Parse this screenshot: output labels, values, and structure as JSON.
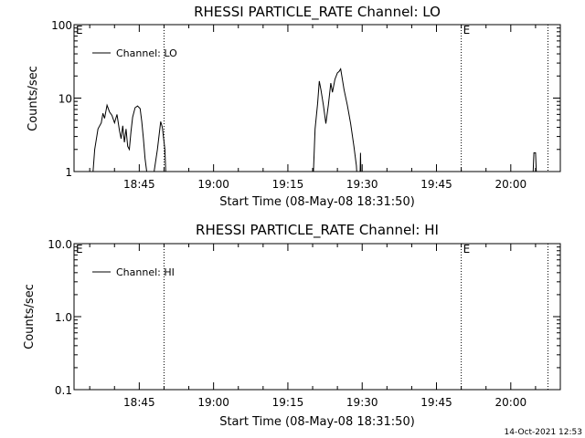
{
  "chart_data": [
    {
      "type": "line",
      "title": "RHESSI PARTICLE_RATE Channel: LO",
      "ylabel": "Counts/sec",
      "xlabel": "Start Time (08-May-08 18:31:50)",
      "yscale": "log",
      "ylim": [
        1,
        100
      ],
      "ytick_labels": [
        "1",
        "10",
        "100"
      ],
      "xlim": [
        "18:31:50",
        "20:10:00"
      ],
      "xtick_labels": [
        "18:45",
        "19:00",
        "19:15",
        "19:30",
        "19:45",
        "20:00"
      ],
      "legend": "Channel: LO",
      "legend_position": "top-left",
      "markers": [
        {
          "label": "E",
          "time": "18:31:50"
        },
        {
          "label": "",
          "time": "18:50:00"
        },
        {
          "label": "E",
          "time": "19:50:00"
        },
        {
          "label": "",
          "time": "20:07:30"
        }
      ],
      "series": [
        {
          "name": "Channel: LO",
          "points": [
            [
              "18:35:20",
              0.5
            ],
            [
              "18:36:00",
              2.0
            ],
            [
              "18:36:40",
              3.8
            ],
            [
              "18:37:20",
              4.6
            ],
            [
              "18:37:40",
              6.2
            ],
            [
              "18:38:00",
              5.3
            ],
            [
              "18:38:30",
              8.0
            ],
            [
              "18:39:00",
              6.5
            ],
            [
              "18:39:30",
              5.8
            ],
            [
              "18:40:00",
              4.6
            ],
            [
              "18:40:30",
              6.0
            ],
            [
              "18:41:00",
              3.6
            ],
            [
              "18:41:20",
              2.8
            ],
            [
              "18:41:40",
              4.2
            ],
            [
              "18:42:00",
              2.5
            ],
            [
              "18:42:20",
              3.8
            ],
            [
              "18:42:40",
              2.2
            ],
            [
              "18:43:00",
              2.0
            ],
            [
              "18:43:20",
              3.5
            ],
            [
              "18:43:40",
              5.5
            ],
            [
              "18:44:10",
              7.4
            ],
            [
              "18:44:40",
              7.8
            ],
            [
              "18:45:10",
              7.2
            ],
            [
              "18:45:30",
              4.8
            ],
            [
              "18:45:50",
              2.8
            ],
            [
              "18:46:10",
              1.5
            ],
            [
              "18:46:30",
              1.0
            ],
            [
              "18:47:20",
              0.5
            ],
            [
              "18:48:40",
              2.0
            ],
            [
              "18:49:20",
              4.8
            ],
            [
              "18:49:40",
              4.0
            ],
            [
              "18:50:10",
              2.0
            ],
            [
              "18:50:30",
              0.5
            ],
            [
              "19:20:00",
              0.5
            ],
            [
              "19:20:30",
              3.8
            ],
            [
              "19:21:00",
              8.5
            ],
            [
              "19:21:20",
              17.0
            ],
            [
              "19:21:40",
              13.0
            ],
            [
              "19:22:10",
              8.0
            ],
            [
              "19:22:40",
              4.5
            ],
            [
              "19:23:10",
              8.0
            ],
            [
              "19:23:40",
              16.0
            ],
            [
              "19:24:00",
              12.0
            ],
            [
              "19:24:30",
              18.0
            ],
            [
              "19:25:00",
              22.0
            ],
            [
              "19:25:20",
              23.0
            ],
            [
              "19:25:40",
              25.0
            ],
            [
              "19:26:20",
              13.0
            ],
            [
              "19:27:00",
              8.0
            ],
            [
              "19:27:40",
              4.5
            ],
            [
              "19:28:20",
              2.2
            ],
            [
              "19:28:50",
              1.2
            ],
            [
              "19:29:10",
              0.5
            ],
            [
              "19:29:30",
              0.5
            ],
            [
              "19:29:40",
              1.8
            ],
            [
              "19:29:50",
              0.5
            ],
            [
              "20:04:20",
              0.5
            ],
            [
              "20:04:40",
              1.8
            ],
            [
              "20:05:00",
              1.8
            ],
            [
              "20:05:20",
              0.5
            ]
          ]
        }
      ]
    },
    {
      "type": "line",
      "title": "RHESSI PARTICLE_RATE Channel: HI",
      "ylabel": "Counts/sec",
      "xlabel": "Start Time (08-May-08 18:31:50)",
      "yscale": "log",
      "ylim": [
        0.1,
        10
      ],
      "ytick_labels": [
        "0.1",
        "1.0",
        "10.0"
      ],
      "xlim": [
        "18:31:50",
        "20:10:00"
      ],
      "xtick_labels": [
        "18:45",
        "19:00",
        "19:15",
        "19:30",
        "19:45",
        "20:00"
      ],
      "legend": "Channel: HI",
      "legend_position": "top-left",
      "markers": [
        {
          "label": "E",
          "time": "18:31:50"
        },
        {
          "label": "",
          "time": "18:50:00"
        },
        {
          "label": "E",
          "time": "19:50:00"
        },
        {
          "label": "",
          "time": "20:07:30"
        }
      ],
      "series": [
        {
          "name": "Channel: HI",
          "points": []
        }
      ]
    }
  ],
  "footer": {
    "timestamp": "14-Oct-2021 12:53"
  }
}
